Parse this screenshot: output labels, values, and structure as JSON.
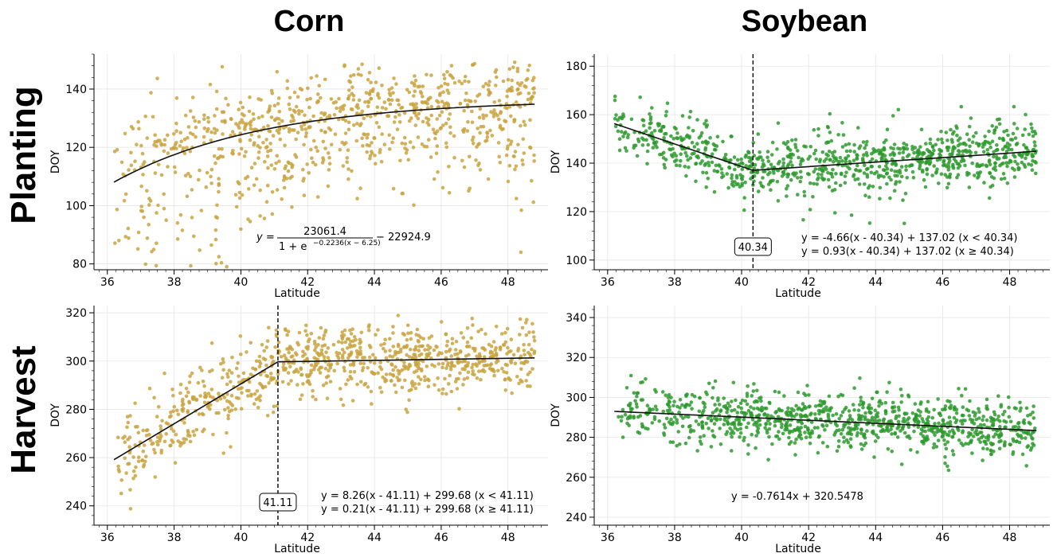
{
  "figure": {
    "col_titles": [
      "Corn",
      "Soybean"
    ],
    "row_titles": [
      "Planting",
      "Harvest"
    ]
  },
  "chart_data": [
    {
      "id": "corn-planting",
      "type": "scatter",
      "xlabel": "Latitude",
      "ylabel": "DOY",
      "xlim": [
        35.6,
        49.2
      ],
      "ylim": [
        78,
        152
      ],
      "xticks": [
        36,
        38,
        40,
        42,
        44,
        46,
        48
      ],
      "yticks": [
        80,
        100,
        120,
        140
      ],
      "point_color": "#c9a340",
      "fit": {
        "kind": "logistic",
        "A": 23061.4,
        "k": 0.2236,
        "x0": 6.25,
        "C": 22924.9,
        "x_range": [
          36.2,
          48.8
        ]
      },
      "equation": {
        "prefix": "y =",
        "numerator": "23061.4",
        "denominator": "1 + e",
        "exponent": "−0.2236(x − 6.25)",
        "suffix": "− 22924.9"
      },
      "scatter": {
        "n": 900,
        "x_range": [
          36.2,
          48.8
        ],
        "spread": 8,
        "skew": "low",
        "seed": 11
      }
    },
    {
      "id": "soy-planting",
      "type": "scatter",
      "xlabel": "Latitude",
      "ylabel": "DOY",
      "xlim": [
        35.6,
        49.2
      ],
      "ylim": [
        96,
        185
      ],
      "xticks": [
        36,
        38,
        40,
        42,
        44,
        46,
        48
      ],
      "yticks": [
        100,
        120,
        140,
        160,
        180
      ],
      "point_color": "#2e9a2e",
      "breakpoint": 40.34,
      "breakpoint_label": "40.34",
      "fit": {
        "kind": "segmented",
        "bp": 40.34,
        "y_bp": 137.02,
        "slope_left": -4.66,
        "slope_right": 0.93,
        "x_range": [
          36.2,
          48.8
        ]
      },
      "equations": [
        "y = -4.66(x - 40.34) + 137.02 (x < 40.34)",
        "y = 0.93(x - 40.34) + 137.02 (x ≥ 40.34)"
      ],
      "scatter": {
        "n": 950,
        "x_range": [
          36.2,
          48.8
        ],
        "spread": 6,
        "skew": "none",
        "seed": 23
      }
    },
    {
      "id": "corn-harvest",
      "type": "scatter",
      "xlabel": "Latitude",
      "ylabel": "DOY",
      "xlim": [
        35.6,
        49.2
      ],
      "ylim": [
        232,
        323
      ],
      "xticks": [
        36,
        38,
        40,
        42,
        44,
        46,
        48
      ],
      "yticks": [
        240,
        260,
        280,
        300,
        320
      ],
      "point_color": "#c9a340",
      "breakpoint": 41.11,
      "breakpoint_label": "41.11",
      "fit": {
        "kind": "segmented",
        "bp": 41.11,
        "y_bp": 299.68,
        "slope_left": 8.26,
        "slope_right": 0.21,
        "x_range": [
          36.2,
          48.8
        ]
      },
      "equations": [
        "y = 8.26(x - 41.11) + 299.68 (x < 41.11)",
        "y = 0.21(x - 41.11) + 299.68 (x ≥ 41.11)"
      ],
      "scatter": {
        "n": 900,
        "x_range": [
          36.2,
          48.8
        ],
        "spread": 7,
        "skew": "none",
        "seed": 37
      }
    },
    {
      "id": "soy-harvest",
      "type": "scatter",
      "xlabel": "Latitude",
      "ylabel": "DOY",
      "xlim": [
        35.6,
        49.2
      ],
      "ylim": [
        236,
        346
      ],
      "xticks": [
        36,
        38,
        40,
        42,
        44,
        46,
        48
      ],
      "yticks": [
        240,
        260,
        280,
        300,
        320,
        340
      ],
      "point_color": "#2e9a2e",
      "fit": {
        "kind": "linear",
        "slope": -0.7614,
        "intercept": 320.5478,
        "x_range": [
          36.2,
          48.8
        ]
      },
      "equations": [
        "y = -0.7614x + 320.5478"
      ],
      "scatter": {
        "n": 1000,
        "x_range": [
          36.2,
          48.8
        ],
        "spread": 7,
        "skew": "none",
        "seed": 53
      }
    }
  ]
}
